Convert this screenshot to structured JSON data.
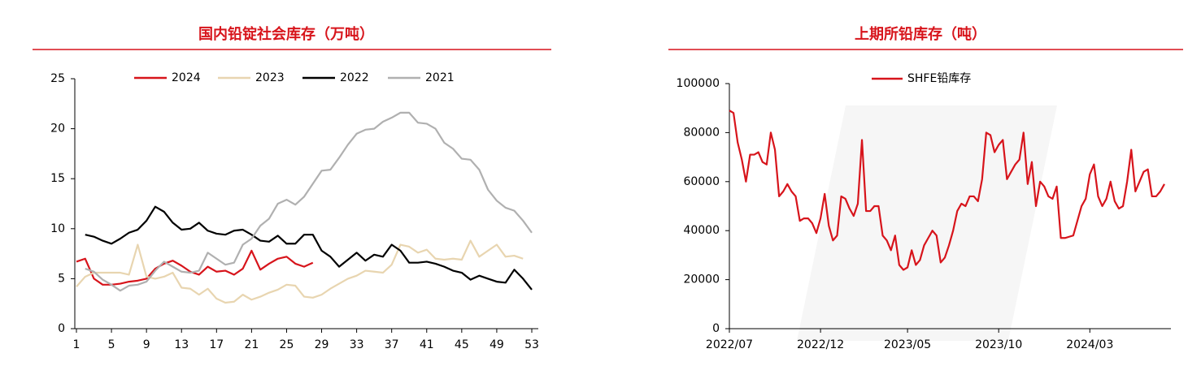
{
  "chart_data": [
    {
      "type": "line",
      "title": "国内铅锭社会库存（万吨）",
      "x": [
        1,
        2,
        3,
        4,
        5,
        6,
        7,
        8,
        9,
        10,
        11,
        12,
        13,
        14,
        15,
        16,
        17,
        18,
        19,
        20,
        21,
        22,
        23,
        24,
        25,
        26,
        27,
        28,
        29,
        30,
        31,
        32,
        33,
        34,
        35,
        36,
        37,
        38,
        39,
        40,
        41,
        42,
        43,
        44,
        45,
        46,
        47,
        48,
        49,
        50,
        51,
        52,
        53
      ],
      "xlim": [
        1,
        53
      ],
      "xticks": [
        1,
        5,
        9,
        13,
        17,
        21,
        25,
        29,
        33,
        37,
        41,
        45,
        49,
        53
      ],
      "ylim": [
        0,
        25
      ],
      "yticks": [
        0,
        5,
        10,
        15,
        20,
        25
      ],
      "legend": "top",
      "series": [
        {
          "name": "2024",
          "color": "#d7141b",
          "values": [
            6.7,
            7.0,
            5.0,
            4.4,
            4.4,
            4.5,
            4.7,
            4.8,
            5.0,
            6.0,
            6.5,
            6.8,
            6.3,
            5.7,
            5.4,
            6.2,
            5.7,
            5.8,
            5.4,
            6.0,
            7.8,
            5.9,
            6.5,
            7.0,
            7.2,
            6.5,
            6.2,
            6.6,
            null,
            null,
            null,
            null,
            null,
            null,
            null,
            null,
            null,
            null,
            null,
            null,
            null,
            null,
            null,
            null,
            null,
            null,
            null,
            null,
            null,
            null,
            null,
            null,
            null
          ]
        },
        {
          "name": "2023",
          "color": "#e8d5b0",
          "values": [
            4.2,
            5.2,
            5.6,
            5.6,
            5.6,
            5.6,
            5.4,
            8.4,
            5.2,
            5.0,
            5.2,
            5.6,
            4.1,
            4.0,
            3.4,
            4.0,
            3.0,
            2.6,
            2.7,
            3.4,
            2.9,
            3.2,
            3.6,
            3.9,
            4.4,
            4.3,
            3.2,
            3.1,
            3.4,
            4.0,
            4.5,
            5.0,
            5.3,
            5.8,
            5.7,
            5.6,
            6.4,
            8.4,
            8.2,
            7.6,
            7.9,
            7.0,
            6.9,
            7.0,
            6.9,
            8.8,
            7.2,
            7.8,
            8.4,
            7.2,
            7.3,
            7.0,
            null
          ]
        },
        {
          "name": "2022",
          "color": "#000000",
          "values": [
            null,
            9.4,
            9.2,
            8.8,
            8.5,
            9.0,
            9.6,
            9.9,
            10.8,
            12.2,
            11.7,
            10.6,
            9.9,
            10.0,
            10.6,
            9.8,
            9.5,
            9.4,
            9.8,
            9.9,
            9.4,
            8.8,
            8.7,
            9.3,
            8.5,
            8.5,
            9.4,
            9.4,
            7.8,
            7.2,
            6.2,
            6.9,
            7.6,
            6.8,
            7.4,
            7.2,
            8.4,
            7.8,
            6.6,
            6.6,
            6.7,
            6.5,
            6.2,
            5.8,
            5.6,
            4.9,
            5.3,
            5.0,
            4.7,
            4.6,
            5.9,
            5.0,
            3.9
          ]
        },
        {
          "name": "2021",
          "color": "#b0b0b0",
          "values": [
            null,
            6.0,
            5.7,
            4.9,
            4.4,
            3.8,
            4.3,
            4.4,
            4.7,
            5.8,
            6.7,
            6.2,
            5.7,
            5.6,
            5.8,
            7.6,
            7.0,
            6.4,
            6.6,
            8.4,
            9.0,
            10.3,
            11.0,
            12.5,
            12.9,
            12.4,
            13.2,
            14.5,
            15.8,
            15.9,
            17.1,
            18.4,
            19.5,
            19.9,
            20.0,
            20.7,
            21.1,
            21.6,
            21.6,
            20.6,
            20.5,
            20.0,
            18.6,
            18.0,
            17.0,
            16.9,
            15.9,
            13.9,
            12.8,
            12.1,
            11.8,
            10.8,
            9.6
          ]
        }
      ]
    },
    {
      "type": "line",
      "title": "上期所铅库存（吨）",
      "categories": [
        "2022/07",
        null,
        null,
        null,
        null,
        null,
        null,
        null,
        null,
        null,
        null,
        null,
        null,
        null,
        null,
        null,
        null,
        null,
        null,
        null,
        null,
        null,
        "2022/12",
        null,
        null,
        null,
        null,
        null,
        null,
        null,
        null,
        null,
        null,
        null,
        null,
        null,
        null,
        null,
        null,
        null,
        null,
        null,
        null,
        "2023/05",
        null,
        null,
        null,
        null,
        null,
        null,
        null,
        null,
        null,
        null,
        null,
        null,
        null,
        null,
        null,
        null,
        null,
        null,
        null,
        null,
        null,
        "2023/10",
        null,
        null,
        null,
        null,
        null,
        null,
        null,
        null,
        null,
        null,
        null,
        null,
        null,
        null,
        null,
        null,
        null,
        null,
        null,
        null,
        null,
        "2024/03",
        null,
        null,
        null,
        null,
        null,
        null,
        null,
        null,
        null,
        null,
        null,
        null,
        null,
        null,
        null,
        null,
        null,
        null
      ],
      "ylim": [
        0,
        100000
      ],
      "yticks": [
        0,
        20000,
        40000,
        60000,
        80000,
        100000
      ],
      "legend": "top",
      "series": [
        {
          "name": "SHFE铅库存",
          "color": "#d7141b",
          "values": [
            89000,
            88000,
            76000,
            69000,
            60000,
            71000,
            71000,
            72000,
            68000,
            67000,
            80000,
            73000,
            54000,
            56000,
            59000,
            56000,
            54000,
            44000,
            45000,
            45000,
            43000,
            39000,
            45000,
            55000,
            42000,
            36000,
            38000,
            54000,
            53000,
            49000,
            46000,
            51000,
            77000,
            48000,
            48000,
            50000,
            50000,
            38000,
            36000,
            32000,
            38000,
            26000,
            24000,
            25000,
            32000,
            26000,
            28000,
            34000,
            37000,
            40000,
            38000,
            27000,
            29000,
            34000,
            40000,
            48000,
            51000,
            50000,
            54000,
            54000,
            52000,
            61000,
            80000,
            79000,
            72000,
            75000,
            77000,
            61000,
            64000,
            67000,
            69000,
            80000,
            59000,
            68000,
            50000,
            60000,
            58000,
            54000,
            53000,
            58000,
            37000,
            37000,
            37500,
            38000,
            44000,
            50000,
            53000,
            63000,
            67000,
            54000,
            50000,
            53000,
            60000,
            52000,
            49000,
            50000,
            60000,
            73000,
            56000,
            60000,
            64000,
            65000,
            54000,
            54000,
            56000,
            59000
          ]
        }
      ]
    }
  ]
}
